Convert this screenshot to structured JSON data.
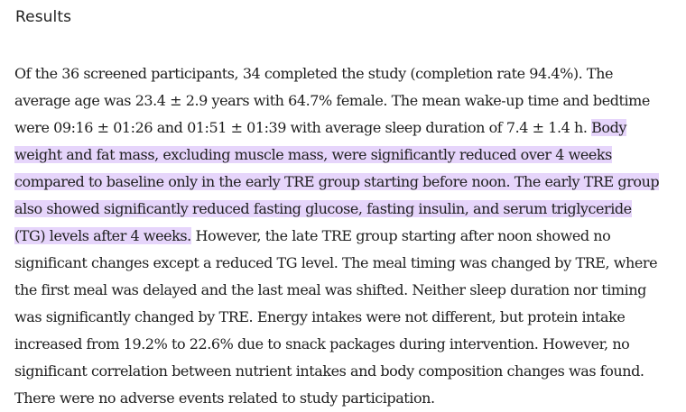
{
  "heading": "Results",
  "paragraph": {
    "lines": [
      [
        {
          "text": "Of the 36 screened participants, 34 completed the study (completion rate 94.4%). The",
          "highlight": false
        }
      ],
      [
        {
          "text": "average age was 23.4 ± 2.9 years with 64.7% female. The mean wake-up time and bedtime",
          "highlight": false
        }
      ],
      [
        {
          "text": "were 09:16 ± 01:26 and 01:51 ± 01:39 with average sleep duration of 7.4 ± 1.4 h. ",
          "highlight": false
        },
        {
          "text": "Body",
          "highlight": true
        }
      ],
      [
        {
          "text": "weight and fat mass, excluding muscle mass, were significantly reduced over 4 weeks",
          "highlight": true
        }
      ],
      [
        {
          "text": "compared to baseline only in the early TRE group starting before noon. The early TRE group",
          "highlight": true
        }
      ],
      [
        {
          "text": "also showed significantly reduced fasting glucose, fasting insulin, and serum triglyceride",
          "highlight": true
        }
      ],
      [
        {
          "text": "(TG) levels after 4 weeks.",
          "highlight": true
        },
        {
          "text": " However, the late TRE group starting after noon showed no",
          "highlight": false
        }
      ],
      [
        {
          "text": "significant changes except a reduced TG level. The meal timing was changed by TRE, where",
          "highlight": false
        }
      ],
      [
        {
          "text": "the first meal was delayed and the last meal was shifted. Neither sleep duration nor timing",
          "highlight": false
        }
      ],
      [
        {
          "text": "was significantly changed by TRE. Energy intakes were not different, but protein intake",
          "highlight": false
        }
      ],
      [
        {
          "text": "increased from 19.2% to 22.6% due to snack packages during intervention. However, no",
          "highlight": false
        }
      ],
      [
        {
          "text": "significant correlation between nutrient intakes and body composition changes was found.",
          "highlight": false
        }
      ],
      [
        {
          "text": "There were no adverse events related to study participation.",
          "highlight": false
        }
      ]
    ]
  },
  "colors": {
    "highlight": "#e6d5fb",
    "text": "#1e1e1e",
    "background": "#ffffff"
  }
}
